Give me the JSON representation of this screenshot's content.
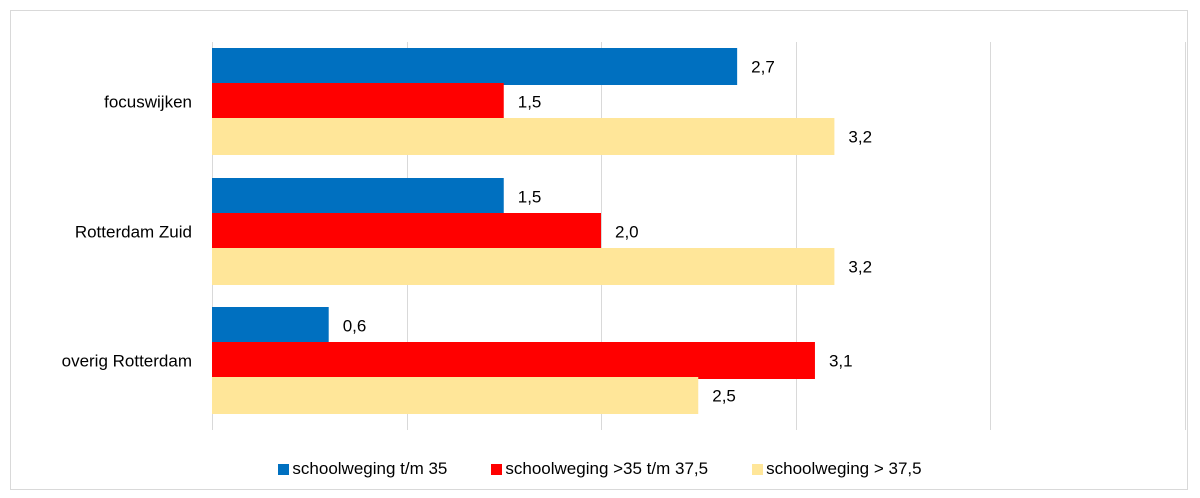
{
  "chart_data": {
    "type": "bar",
    "orientation": "horizontal",
    "categories": [
      "focuswijken",
      "Rotterdam Zuid",
      "overig Rotterdam"
    ],
    "series": [
      {
        "name": "schoolweging t/m 35",
        "color": "#0070c0",
        "values": [
          2.7,
          1.5,
          0.6
        ],
        "labels": [
          "2,7",
          "1,5",
          "0,6"
        ]
      },
      {
        "name": "schoolweging >35 t/m 37,5",
        "color": "#ff0000",
        "values": [
          1.5,
          2.0,
          3.1
        ],
        "labels": [
          "1,5",
          "2,0",
          "3,1"
        ]
      },
      {
        "name": "schoolweging > 37,5",
        "color": "#ffe699",
        "values": [
          3.2,
          3.2,
          2.5
        ],
        "labels": [
          "3,2",
          "3,2",
          "2,5"
        ]
      }
    ],
    "xlim": [
      0,
      5
    ],
    "grid": true,
    "legend_position": "bottom"
  }
}
